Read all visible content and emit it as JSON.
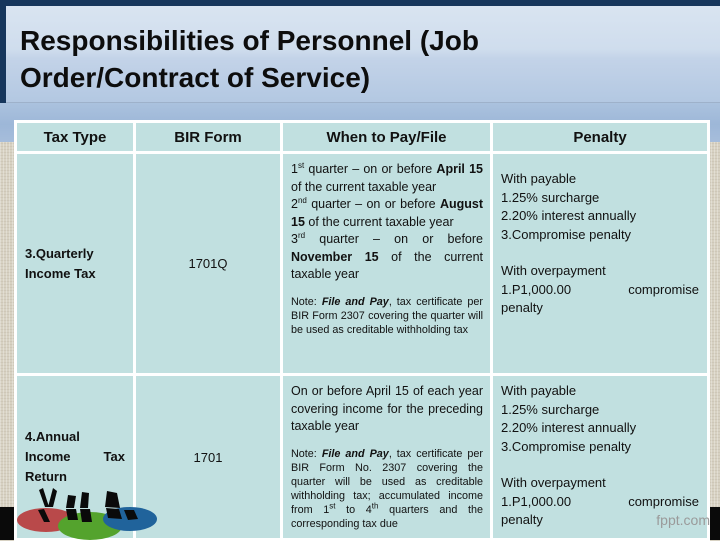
{
  "slide": {
    "title": "Responsibilities of Personnel (Job Order/Contract of Service)",
    "watermark": "fppt.com"
  },
  "colors": {
    "cell_bg": "#c1e0e0",
    "navy_accent": "#16365c",
    "title_gradient_top": "#d9e4f1",
    "title_gradient_bottom": "#b3c8e2",
    "beige_background": "#d7d1c2",
    "logo_red": "#b9494a",
    "logo_green": "#54a32d",
    "logo_blue": "#20639b"
  },
  "table": {
    "headers": [
      "Tax Type",
      "BIR Form",
      "When to Pay/File",
      "Penalty"
    ],
    "rows": [
      {
        "tax_type": "3.Quarterly Income Tax",
        "bir_form": "1701Q",
        "schedule": [
          "1<sup>st</sup> quarter – on or before <b>April 15</b> of the current taxable year",
          "2<sup>nd</sup> quarter – on or before <b>August 15</b> of the current taxable year",
          "3<sup>rd</sup> quarter – on or before <b>November 15</b> of the current taxable year"
        ],
        "note_html": "Note: <b><i>File and Pay</i></b>, tax certificate per BIR Form 2307 covering the quarter will be used as creditable withholding tax"
      },
      {
        "tax_type": "4.Annual Income Tax Return",
        "bir_form": "1701",
        "schedule": [
          "On or before April 15 of each year covering income for the preceding taxable year"
        ],
        "note_html": "Note: <b><i>File and Pay</i></b>, tax certificate per BIR Form No. 2307 covering the quarter will be used as creditable withholding tax; accumulated income from 1<sup>st</sup> to 4<sup>th</sup> quarters and the corresponding tax due"
      }
    ]
  },
  "penalty": {
    "with_payable": "With payable",
    "payable_items": [
      "1.25% surcharge",
      "2.20% interest annually",
      "3.Compromise penalty"
    ],
    "with_overpayment": "With overpayment",
    "overpayment_amount": "1.P1,000.00",
    "overpayment_word": "compromise",
    "overpayment_tail": "penalty"
  }
}
